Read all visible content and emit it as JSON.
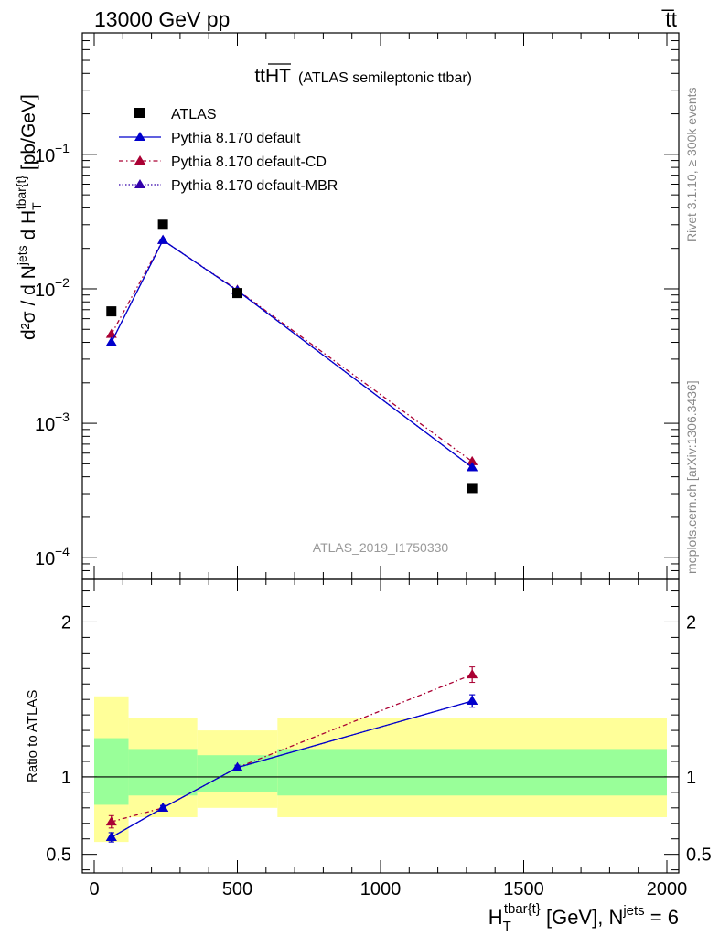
{
  "header": {
    "left": "13000 GeV pp",
    "right": "t̅t"
  },
  "plot_title": {
    "main": "ttHT",
    "sub": "(ATLAS semileptonic ttbar)"
  },
  "side_labels": {
    "rivet": "Rivet 3.1.10, ≥ 300k events",
    "mcplots": "mcplots.cern.ch [arXiv:1306.3436]"
  },
  "watermark": "ATLAS_2019_I1750330",
  "axis_labels": {
    "main_y": "d²σ / d N^jets d H_T^tbar{t} [pb/GeV]",
    "ratio_y": "Ratio to ATLAS",
    "x": "H_T^tbar{t} [GeV], N^jets = 6"
  },
  "colors": {
    "data": "#000000",
    "default": "#0000cc",
    "cd": "#aa0033",
    "mbr": "#3300aa",
    "band_inner": "#99ff99",
    "band_outer": "#ffff99"
  },
  "chart_data": {
    "type": "line",
    "x_range": [
      0,
      2000
    ],
    "x_ticks": [
      0,
      500,
      1000,
      1500,
      2000
    ],
    "x_tick_labels": [
      "0",
      "500",
      "1000",
      "1500",
      "2000"
    ],
    "main_y_scale": "log",
    "main_ylim": [
      7e-05,
      0.8
    ],
    "main_y_ticks": [
      {
        "value": 0.1,
        "base": "10",
        "exp": "−1"
      },
      {
        "value": 0.01,
        "base": "10",
        "exp": "−2"
      },
      {
        "value": 0.001,
        "base": "10",
        "exp": "−3"
      },
      {
        "value": 0.0001,
        "base": "10",
        "exp": "−4"
      }
    ],
    "ratio_ylim": [
      0.38,
      2.28
    ],
    "ratio_ticks": [
      0.5,
      1,
      2
    ],
    "ratio_tick_labels": [
      "0.5",
      "1",
      "2"
    ],
    "bin_edges": [
      0,
      120,
      360,
      640,
      2000
    ],
    "data": {
      "name": "ATLAS",
      "x": [
        60,
        240,
        500,
        1320
      ],
      "y": [
        0.0068,
        0.03,
        0.0093,
        0.00033
      ]
    },
    "series": [
      {
        "name": "Pythia 8.170 default",
        "key": "default",
        "x": [
          60,
          240,
          500,
          1320
        ],
        "y": [
          0.004,
          0.023,
          0.0097,
          0.00047
        ],
        "ratio": [
          0.61,
          0.8,
          1.06,
          1.49
        ],
        "ratio_err": [
          0.03,
          0.015,
          0.015,
          0.04
        ]
      },
      {
        "name": "Pythia 8.170 default-CD",
        "key": "cd",
        "x": [
          60,
          240,
          500,
          1320
        ],
        "y": [
          0.0046,
          0.023,
          0.0098,
          0.00052
        ],
        "ratio": [
          0.71,
          0.8,
          1.06,
          1.66
        ],
        "ratio_err": [
          0.04,
          0.015,
          0.015,
          0.05
        ]
      },
      {
        "name": "Pythia 8.170 default-MBR",
        "key": "mbr",
        "x": [
          60,
          240,
          500,
          1320
        ],
        "y": [
          0.004,
          0.023,
          0.0097,
          0.00047
        ],
        "ratio": [
          0.61,
          0.8,
          1.06,
          1.49
        ],
        "ratio_err": [
          0.03,
          0.015,
          0.015,
          0.04
        ]
      }
    ],
    "ratio_bands": {
      "inner_low": [
        0.82,
        0.88,
        0.9,
        0.88
      ],
      "inner_high": [
        1.25,
        1.18,
        1.14,
        1.18
      ],
      "outer_low": [
        0.58,
        0.74,
        0.8,
        0.74
      ],
      "outer_high": [
        1.52,
        1.38,
        1.3,
        1.38
      ]
    }
  }
}
